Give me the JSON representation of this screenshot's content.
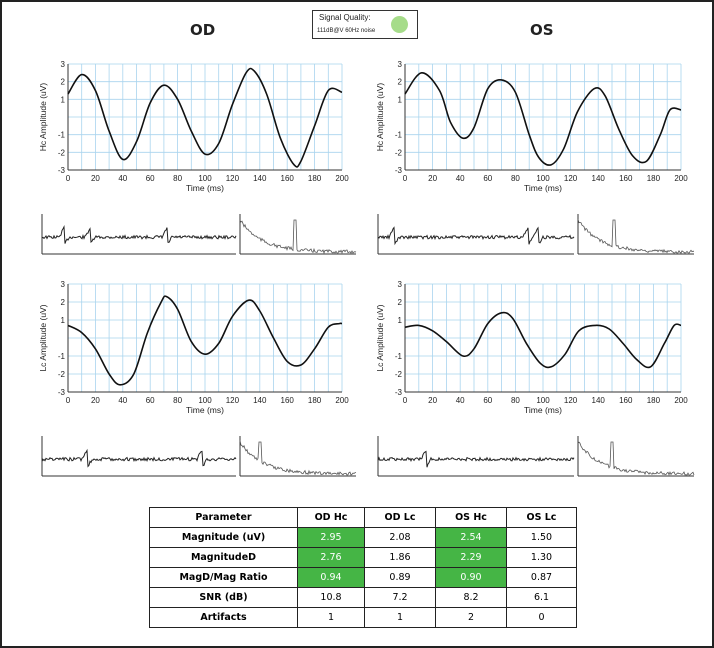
{
  "titles": {
    "left": "OD",
    "right": "OS"
  },
  "signal_quality": {
    "label": "Signal Quality:",
    "detail": "111dB@V 60Hz noise",
    "indicator_color": "#a6dc8a"
  },
  "colors": {
    "grid": "#a9d4ee",
    "trace": "#111111",
    "good_cell": "#45b545"
  },
  "chart_data": [
    {
      "type": "line",
      "panel": "OD Hc",
      "xlabel": "Time (ms)",
      "ylabel": "Hc Amplitude (uV)",
      "xlim": [
        0,
        200
      ],
      "ylim": [
        -3,
        3
      ],
      "xticks": [
        "0",
        "20",
        "40",
        "60",
        "80",
        "100",
        "120",
        "140",
        "160",
        "180",
        "200"
      ],
      "yticks": [
        "3",
        "2",
        "1",
        "",
        "-1",
        "-2",
        "-3"
      ],
      "grid": true,
      "x": [
        0,
        10,
        20,
        30,
        40,
        50,
        60,
        70,
        80,
        90,
        100,
        110,
        120,
        130,
        136,
        145,
        155,
        165,
        170,
        180,
        190,
        200
      ],
      "y": [
        1.3,
        2.4,
        1.5,
        -0.8,
        -2.4,
        -1.4,
        0.8,
        1.8,
        1.0,
        -0.8,
        -2.1,
        -1.5,
        0.7,
        2.5,
        2.6,
        1.3,
        -1.2,
        -2.7,
        -2.5,
        -0.5,
        1.5,
        1.4
      ]
    },
    {
      "type": "line",
      "panel": "OS Hc",
      "xlabel": "Time (ms)",
      "ylabel": "Hc Amplitude (uV)",
      "xlim": [
        0,
        200
      ],
      "ylim": [
        -3,
        3
      ],
      "xticks": [
        "0",
        "20",
        "40",
        "60",
        "80",
        "100",
        "120",
        "140",
        "160",
        "180",
        "200"
      ],
      "yticks": [
        "3",
        "2",
        "1",
        "",
        "-1",
        "-2",
        "-3"
      ],
      "grid": true,
      "x": [
        0,
        12,
        25,
        33,
        42,
        50,
        60,
        70,
        80,
        90,
        97,
        106,
        115,
        125,
        137,
        145,
        155,
        165,
        175,
        185,
        192,
        200
      ],
      "y": [
        1.3,
        2.5,
        1.5,
        -0.3,
        -1.2,
        -0.6,
        1.6,
        2.1,
        1.4,
        -1.0,
        -2.3,
        -2.7,
        -1.8,
        0.3,
        1.6,
        1.2,
        -0.7,
        -2.2,
        -2.5,
        -1.0,
        0.4,
        0.4
      ]
    },
    {
      "type": "line",
      "panel": "OD Lc",
      "xlabel": "Time (ms)",
      "ylabel": "Lc Amplitude (uV)",
      "xlim": [
        0,
        200
      ],
      "ylim": [
        -3,
        3
      ],
      "xticks": [
        "0",
        "20",
        "40",
        "60",
        "80",
        "100",
        "120",
        "140",
        "160",
        "180",
        "200"
      ],
      "yticks": [
        "3",
        "2",
        "1",
        "",
        "-1",
        "-2",
        "-3"
      ],
      "grid": true,
      "x": [
        0,
        10,
        20,
        30,
        38,
        48,
        58,
        68,
        72,
        80,
        90,
        100,
        110,
        120,
        132,
        140,
        150,
        160,
        170,
        180,
        190,
        198,
        200
      ],
      "y": [
        0.7,
        0.3,
        -0.6,
        -2.0,
        -2.6,
        -2.0,
        0.3,
        2.0,
        2.3,
        1.6,
        -0.2,
        -0.9,
        -0.3,
        1.2,
        2.1,
        1.5,
        0.0,
        -1.3,
        -1.5,
        -0.6,
        0.6,
        0.8,
        0.8
      ]
    },
    {
      "type": "line",
      "panel": "OS Lc",
      "xlabel": "Time (ms)",
      "ylabel": "Lc Amplitude (uV)",
      "xlim": [
        0,
        200
      ],
      "ylim": [
        -3,
        3
      ],
      "xticks": [
        "0",
        "20",
        "40",
        "60",
        "80",
        "100",
        "120",
        "140",
        "160",
        "180",
        "200"
      ],
      "yticks": [
        "3",
        "2",
        "1",
        "",
        "-1",
        "-2",
        "-3"
      ],
      "grid": true,
      "x": [
        0,
        10,
        20,
        30,
        42,
        50,
        60,
        70,
        78,
        88,
        98,
        106,
        116,
        126,
        138,
        148,
        158,
        168,
        178,
        188,
        195,
        200
      ],
      "y": [
        0.6,
        0.7,
        0.4,
        -0.2,
        -1.0,
        -0.6,
        0.8,
        1.4,
        1.1,
        -0.3,
        -1.4,
        -1.6,
        -0.9,
        0.4,
        0.7,
        0.5,
        -0.3,
        -1.2,
        -1.6,
        -0.3,
        0.7,
        0.7
      ]
    },
    {
      "type": "table",
      "columns": [
        "Parameter",
        "OD Hc",
        "OD Lc",
        "OS Hc",
        "OS Lc"
      ],
      "rows": [
        [
          "Magnitude (uV)",
          "2.95",
          "2.08",
          "2.54",
          "1.50"
        ],
        [
          "MagnitudeD",
          "2.76",
          "1.86",
          "2.29",
          "1.30"
        ],
        [
          "MagD/Mag Ratio",
          "0.94",
          "0.89",
          "0.90",
          "0.87"
        ],
        [
          "SNR (dB)",
          "10.8",
          "7.2",
          "8.2",
          "6.1"
        ],
        [
          "Artifacts",
          "1",
          "1",
          "2",
          "0"
        ]
      ],
      "highlighted": [
        [
          0,
          1
        ],
        [
          1,
          1
        ],
        [
          2,
          1
        ],
        [
          0,
          3
        ],
        [
          1,
          3
        ],
        [
          2,
          3
        ]
      ]
    }
  ]
}
